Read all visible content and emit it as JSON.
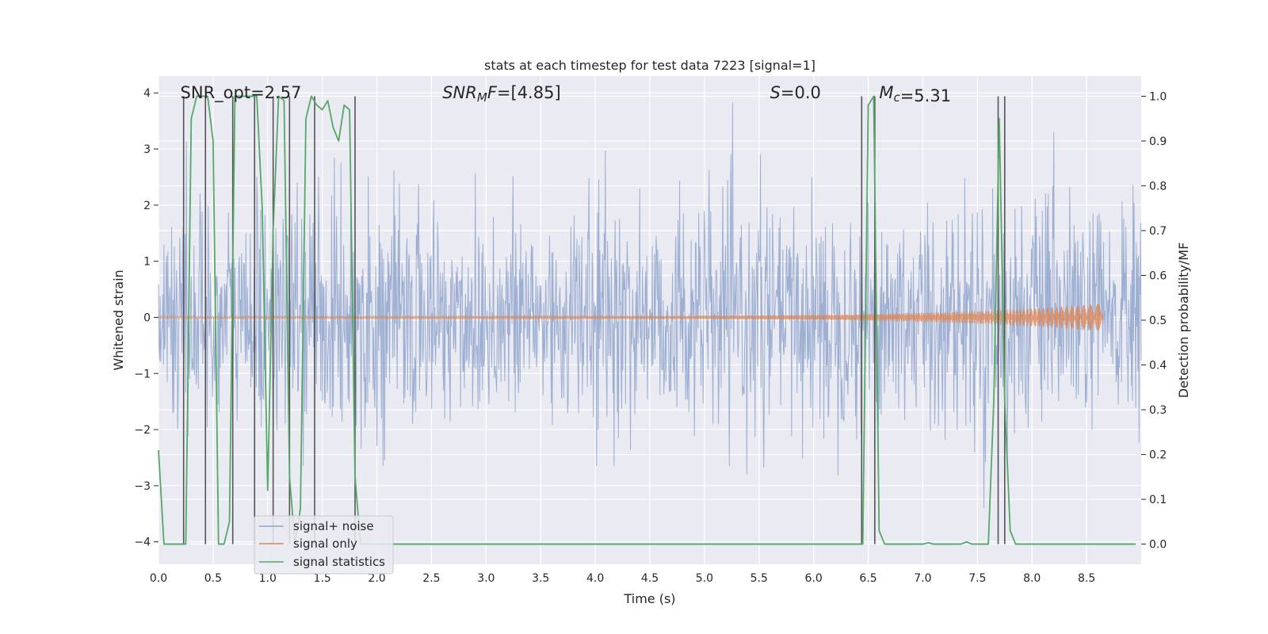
{
  "chart_data": {
    "type": "line",
    "title": "stats at each timestep for test data 7223 [signal=1]",
    "xlabel": "Time (s)",
    "ylabel_left": "Whitened strain",
    "ylabel_right": "Detection probability/MF",
    "xlim": [
      0.0,
      9.0
    ],
    "ylim_left": [
      -4.4,
      4.3
    ],
    "ylim_right": [
      -0.045,
      1.045
    ],
    "x_ticks": [
      "0.0",
      "0.5",
      "1.0",
      "1.5",
      "2.0",
      "2.5",
      "3.0",
      "3.5",
      "4.0",
      "4.5",
      "5.0",
      "5.5",
      "6.0",
      "6.5",
      "7.0",
      "7.5",
      "8.0",
      "8.5"
    ],
    "y_ticks_left": [
      "4",
      "3",
      "2",
      "1",
      "0",
      "−1",
      "−2",
      "−3",
      "−4"
    ],
    "y_ticks_right": [
      "1.0",
      "0.9",
      "0.8",
      "0.7",
      "0.6",
      "0.5",
      "0.4",
      "0.3",
      "0.2",
      "0.1",
      "0.0"
    ],
    "annotations": [
      {
        "text": "SNR_opt=2.57",
        "x": 0.2
      },
      {
        "text": "SNR_MF=[4.85]",
        "x": 2.6
      },
      {
        "text": "S=0.0",
        "x": 5.6
      },
      {
        "text": "M_c=5.31",
        "x": 6.6
      }
    ],
    "legend": {
      "location": "lower left",
      "entries": [
        "signal+ noise",
        "signal only",
        "signal statistics"
      ]
    },
    "colors": {
      "noise": "#8fa4cc",
      "signal": "#dd8452",
      "stats": "#55a868",
      "vline": "#555555",
      "bg": "#eaeaf2",
      "grid": "#ffffff"
    },
    "series": [
      {
        "name": "signal statistics",
        "axis": "right",
        "x": [
          0.0,
          0.05,
          0.25,
          0.3,
          0.35,
          0.4,
          0.45,
          0.5,
          0.55,
          0.6,
          0.65,
          0.7,
          0.75,
          0.8,
          0.9,
          0.95,
          1.0,
          1.05,
          1.1,
          1.15,
          1.2,
          1.25,
          1.3,
          1.35,
          1.4,
          1.45,
          1.5,
          1.55,
          1.6,
          1.65,
          1.7,
          1.75,
          1.8,
          1.85,
          1.9,
          1.95,
          2.0,
          2.05,
          3.5,
          4.0,
          6.45,
          6.5,
          6.55,
          6.6,
          6.65,
          7.0,
          7.05,
          7.1,
          7.35,
          7.4,
          7.45,
          7.5,
          7.6,
          7.65,
          7.7,
          7.75,
          7.8,
          7.85,
          8.95
        ],
        "values": [
          0.21,
          0.0,
          0.0,
          0.95,
          1.0,
          1.0,
          1.0,
          0.9,
          0.0,
          0.0,
          0.05,
          1.0,
          1.0,
          1.0,
          1.0,
          0.75,
          0.12,
          0.7,
          1.0,
          0.99,
          0.15,
          0.0,
          0.08,
          0.95,
          1.0,
          0.98,
          0.97,
          0.99,
          0.93,
          0.9,
          0.98,
          0.97,
          0.15,
          0.0,
          0.0,
          0.0,
          0.0,
          0.0,
          0.0,
          0.0,
          0.0,
          0.98,
          1.0,
          0.03,
          0.0,
          0.0,
          0.003,
          0.0,
          0.0,
          0.005,
          0.0,
          0.0,
          0.0,
          0.32,
          0.95,
          0.32,
          0.03,
          0.0,
          0.0
        ]
      },
      {
        "name": "signal only",
        "axis": "left",
        "chirp_start": 0.0,
        "chirp_end": 8.65,
        "amplitude_start": 0.02,
        "amplitude_end": 0.25
      },
      {
        "name": "signal+ noise",
        "axis": "left",
        "duration": 9.0,
        "noise_sigma": 1.0,
        "samples": 1800
      }
    ],
    "vertical_lines_x": [
      0.23,
      0.43,
      0.68,
      0.88,
      1.05,
      1.2,
      1.43,
      1.8,
      6.44,
      6.56,
      7.69,
      7.75
    ]
  }
}
